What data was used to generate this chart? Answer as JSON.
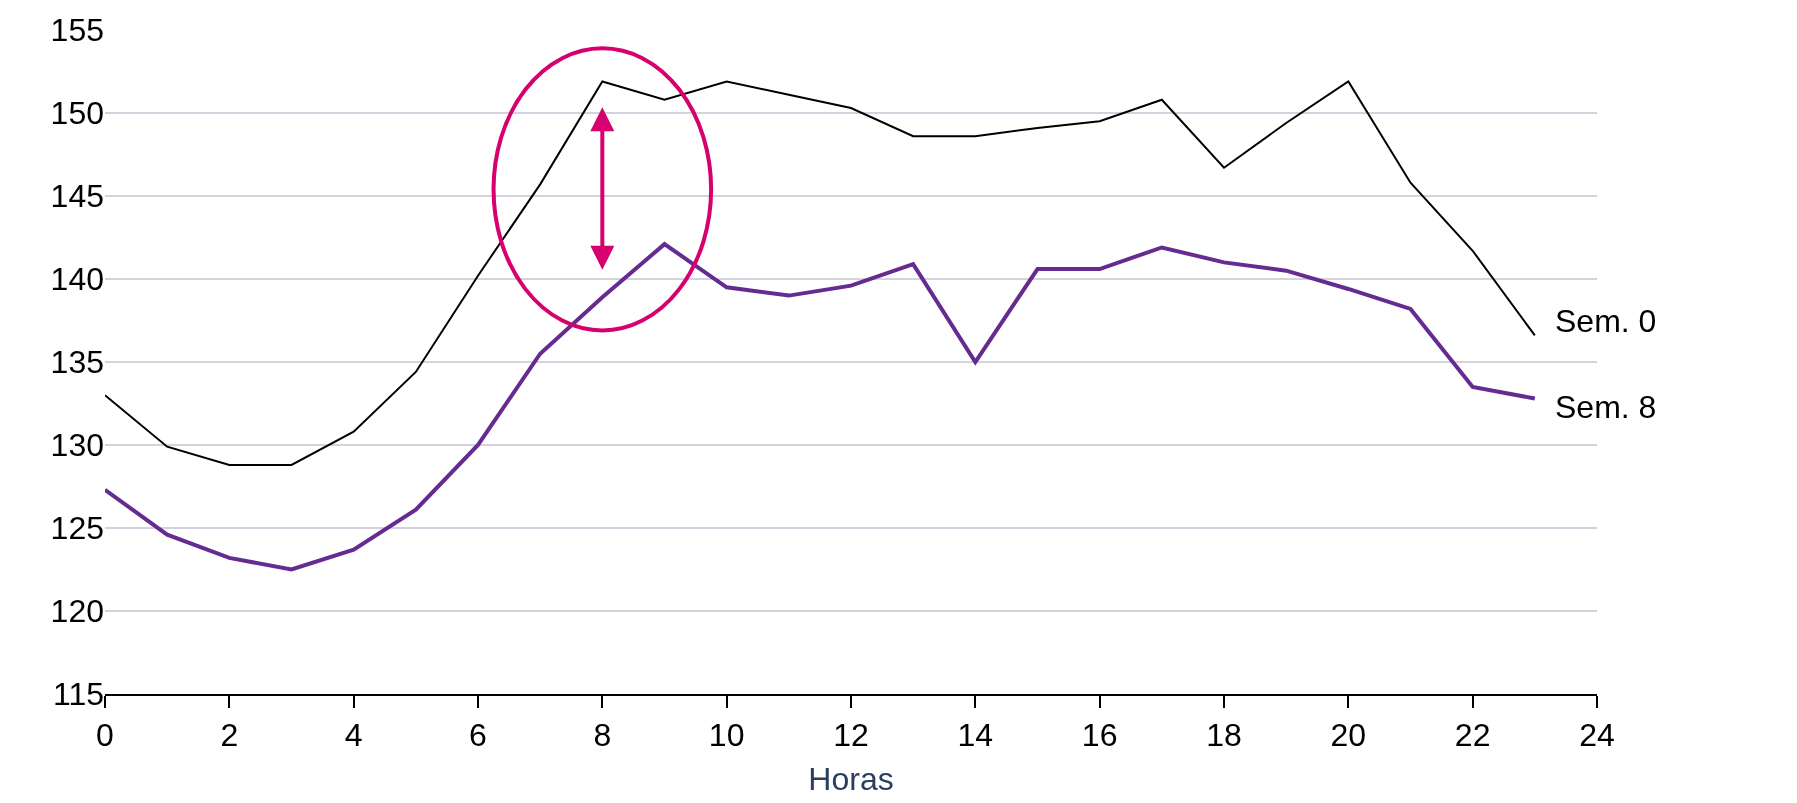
{
  "chart_data": {
    "type": "line",
    "xlabel": "Horas",
    "x": [
      0,
      1,
      2,
      3,
      4,
      5,
      6,
      7,
      8,
      9,
      10,
      11,
      12,
      13,
      14,
      15,
      16,
      17,
      18,
      19,
      20,
      21,
      22,
      23
    ],
    "series": [
      {
        "name": "Sem. 0",
        "color": "#000000",
        "values": [
          133.0,
          129.9,
          128.8,
          128.8,
          130.8,
          134.4,
          140.2,
          145.7,
          151.9,
          150.8,
          151.9,
          151.1,
          150.3,
          148.6,
          148.6,
          149.1,
          149.5,
          150.8,
          146.7,
          149.4,
          151.9,
          145.8,
          141.7,
          136.6
        ]
      },
      {
        "name": "Sem. 8",
        "color": "#652b91",
        "values": [
          127.3,
          124.6,
          123.2,
          122.5,
          123.7,
          126.1,
          130.0,
          135.5,
          138.9,
          142.1,
          139.5,
          139.0,
          139.6,
          140.9,
          135.0,
          140.6,
          140.6,
          141.9,
          141.0,
          140.5,
          139.4,
          138.2,
          133.5,
          132.8
        ]
      }
    ],
    "xlim": [
      0,
      24
    ],
    "xticks": [
      0,
      2,
      4,
      6,
      8,
      10,
      12,
      14,
      16,
      18,
      20,
      22,
      24
    ],
    "ylim": [
      115,
      155
    ],
    "yticks": [
      115,
      120,
      125,
      130,
      135,
      140,
      145,
      150,
      155
    ],
    "grid": "y",
    "legend": false,
    "marker": "none",
    "line_style": "solid"
  }
}
